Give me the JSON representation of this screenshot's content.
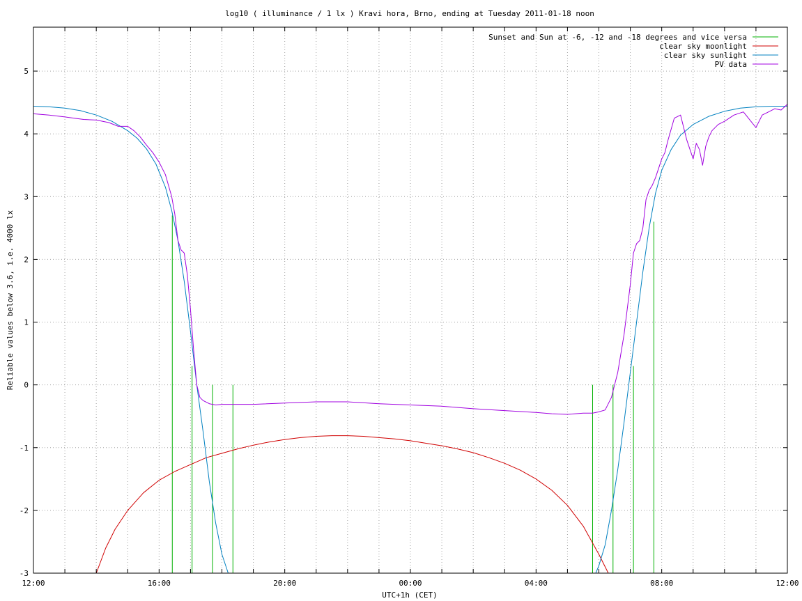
{
  "chart_data": {
    "type": "line",
    "title": "log10 ( illuminance / 1 lx ) Kravi hora, Brno, ending at Tuesday 2011-01-18 noon",
    "xlabel": "UTC+1h (CET)",
    "ylabel": "Reliable values below 3.6, i.e. 4000 lx",
    "x_unit": "hours since 12:00 (2011-01-17)",
    "xlim": [
      0,
      24
    ],
    "ylim": [
      -3,
      5.7
    ],
    "x_tick_labels": [
      {
        "x": 0,
        "label": "12:00"
      },
      {
        "x": 4,
        "label": "16:00"
      },
      {
        "x": 8,
        "label": "20:00"
      },
      {
        "x": 12,
        "label": "00:00"
      },
      {
        "x": 16,
        "label": "04:00"
      },
      {
        "x": 20,
        "label": "08:00"
      },
      {
        "x": 24,
        "label": "12:00"
      }
    ],
    "x_minor_ticks": [
      1,
      2,
      3,
      5,
      6,
      7,
      9,
      10,
      11,
      13,
      14,
      15,
      17,
      18,
      19,
      21,
      22,
      23
    ],
    "y_ticks": [
      {
        "y": 5,
        "label": "5"
      },
      {
        "y": 4,
        "label": "4"
      },
      {
        "y": 3,
        "label": "3"
      },
      {
        "y": 2,
        "label": "2"
      },
      {
        "y": 1,
        "label": "1"
      },
      {
        "y": 0,
        "label": "0"
      },
      {
        "y": -1,
        "label": "-1"
      },
      {
        "y": -2,
        "label": "-2"
      },
      {
        "y": -3,
        "label": "-3"
      }
    ],
    "grid": true,
    "legend_position": "top-right",
    "series": [
      {
        "name": "Sunset and Sun at -6, -12 and -18 degrees and vice versa",
        "color": "#00b000",
        "style": "vertical-lines",
        "lines": [
          {
            "x": 4.42,
            "y_top": 2.7
          },
          {
            "x": 5.05,
            "y_top": 0.3
          },
          {
            "x": 5.7,
            "y_top": 0.0
          },
          {
            "x": 6.35,
            "y_top": 0.0
          },
          {
            "x": 17.8,
            "y_top": 0.0
          },
          {
            "x": 18.45,
            "y_top": 0.0
          },
          {
            "x": 19.1,
            "y_top": 0.3
          },
          {
            "x": 19.75,
            "y_top": 2.6
          }
        ]
      },
      {
        "name": "clear sky moonlight",
        "color": "#d00000",
        "x": [
          2.0,
          2.3,
          2.6,
          3.0,
          3.5,
          4.0,
          4.5,
          5.0,
          5.5,
          6.0,
          6.5,
          7.0,
          7.5,
          8.0,
          8.5,
          9.0,
          9.5,
          10.0,
          10.5,
          11.0,
          11.5,
          12.0,
          12.5,
          13.0,
          13.5,
          14.0,
          14.5,
          15.0,
          15.5,
          16.0,
          16.5,
          17.0,
          17.5,
          18.0,
          18.3,
          18.6
        ],
        "y": [
          -3.0,
          -2.6,
          -2.3,
          -2.0,
          -1.72,
          -1.52,
          -1.38,
          -1.27,
          -1.16,
          -1.09,
          -1.02,
          -0.96,
          -0.91,
          -0.87,
          -0.84,
          -0.82,
          -0.81,
          -0.81,
          -0.82,
          -0.84,
          -0.86,
          -0.89,
          -0.93,
          -0.97,
          -1.02,
          -1.08,
          -1.16,
          -1.25,
          -1.36,
          -1.5,
          -1.68,
          -1.92,
          -2.25,
          -2.7,
          -3.0,
          -3.0
        ]
      },
      {
        "name": "clear sky sunlight",
        "color": "#0080c0",
        "x": [
          0,
          0.5,
          1.0,
          1.5,
          2.0,
          2.5,
          3.0,
          3.3,
          3.6,
          3.9,
          4.2,
          4.4,
          4.6,
          4.8,
          5.0,
          5.2,
          5.4,
          5.6,
          5.8,
          6.0,
          6.2,
          6.3,
          17.9,
          18.0,
          18.2,
          18.4,
          18.6,
          18.8,
          19.0,
          19.2,
          19.4,
          19.6,
          19.8,
          20.0,
          20.3,
          20.6,
          21.0,
          21.5,
          22.0,
          22.5,
          23.0,
          23.5,
          24.0
        ],
        "y": [
          4.44,
          4.43,
          4.41,
          4.37,
          4.3,
          4.2,
          4.05,
          3.93,
          3.76,
          3.52,
          3.15,
          2.78,
          2.3,
          1.65,
          0.85,
          0.0,
          -0.75,
          -1.55,
          -2.2,
          -2.7,
          -3.0,
          -3.0,
          -3.0,
          -2.88,
          -2.55,
          -2.0,
          -1.35,
          -0.6,
          0.2,
          1.0,
          1.8,
          2.5,
          3.05,
          3.42,
          3.75,
          3.98,
          4.15,
          4.28,
          4.36,
          4.41,
          4.43,
          4.44,
          4.44
        ]
      },
      {
        "name": "PV data",
        "color": "#a000e0",
        "x": [
          0,
          0.5,
          1.0,
          1.3,
          1.6,
          2.0,
          2.4,
          2.7,
          3.0,
          3.2,
          3.4,
          3.6,
          3.8,
          4.0,
          4.2,
          4.4,
          4.5,
          4.6,
          4.7,
          4.8,
          4.9,
          5.0,
          5.1,
          5.2,
          5.3,
          5.4,
          5.6,
          5.8,
          6.0,
          6.5,
          7.0,
          8.0,
          9.0,
          10.0,
          11.0,
          12.0,
          13.0,
          14.0,
          15.0,
          16.0,
          16.5,
          17.0,
          17.5,
          17.8,
          18.0,
          18.2,
          18.4,
          18.6,
          18.8,
          19.0,
          19.1,
          19.2,
          19.3,
          19.4,
          19.5,
          19.6,
          19.7,
          19.8,
          19.9,
          20.0,
          20.1,
          20.2,
          20.4,
          20.6,
          20.8,
          21.0,
          21.1,
          21.2,
          21.3,
          21.4,
          21.5,
          21.6,
          21.7,
          21.8,
          22.0,
          22.3,
          22.6,
          23.0,
          23.2,
          23.4,
          23.6,
          23.8,
          24.0
        ],
        "y": [
          4.32,
          4.3,
          4.27,
          4.25,
          4.23,
          4.22,
          4.18,
          4.12,
          4.12,
          4.05,
          3.95,
          3.82,
          3.7,
          3.55,
          3.35,
          3.0,
          2.72,
          2.3,
          2.15,
          2.1,
          1.75,
          1.2,
          0.55,
          0.0,
          -0.2,
          -0.25,
          -0.3,
          -0.32,
          -0.31,
          -0.31,
          -0.31,
          -0.29,
          -0.27,
          -0.27,
          -0.3,
          -0.32,
          -0.34,
          -0.38,
          -0.41,
          -0.44,
          -0.46,
          -0.47,
          -0.45,
          -0.45,
          -0.43,
          -0.4,
          -0.2,
          0.2,
          0.8,
          1.6,
          2.1,
          2.25,
          2.3,
          2.5,
          2.95,
          3.1,
          3.18,
          3.3,
          3.45,
          3.6,
          3.7,
          3.9,
          4.25,
          4.3,
          3.9,
          3.6,
          3.85,
          3.75,
          3.5,
          3.8,
          3.95,
          4.05,
          4.1,
          4.15,
          4.2,
          4.3,
          4.35,
          4.1,
          4.3,
          4.35,
          4.4,
          4.38,
          4.47
        ]
      }
    ]
  }
}
